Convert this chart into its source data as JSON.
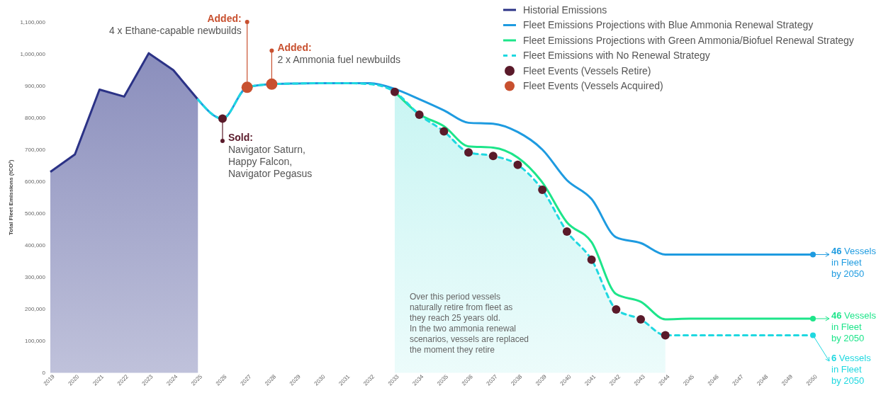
{
  "chart_data": {
    "type": "line",
    "ylabel": "Total Fleet Emissions (tCO²)",
    "xlim": [
      2019,
      2050
    ],
    "xticks": [
      2019,
      2020,
      2021,
      2022,
      2023,
      2024,
      2025,
      2026,
      2027,
      2028,
      2029,
      2030,
      2031,
      2032,
      2033,
      2034,
      2035,
      2036,
      2037,
      2038,
      2039,
      2040,
      2041,
      2042,
      2043,
      2044,
      2045,
      2046,
      2047,
      2048,
      2049,
      2050
    ],
    "ylim": [
      0,
      1100000
    ],
    "yticks": [
      0,
      {
        "value": 100000,
        "label": "100,000"
      },
      {
        "value": 200000,
        "label": "200,000"
      },
      {
        "value": 300000,
        "label": "300,000"
      },
      {
        "value": 400000,
        "label": "400,000"
      },
      {
        "value": 500000,
        "label": "500,000"
      },
      {
        "value": 600000,
        "label": "600,000"
      },
      {
        "value": 700000,
        "label": "700,000"
      },
      {
        "value": 800000,
        "label": "800,000"
      },
      {
        "value": 900000,
        "label": "900,000"
      },
      {
        "value": 1000000,
        "label": "1,000,000"
      },
      {
        "value": 1100000,
        "label": "1,100,000"
      }
    ],
    "grid": false,
    "legend": "top right",
    "series": [
      {
        "type": "area",
        "color": "#c9f5f3",
        "x": [
          2033,
          2034,
          2035,
          2036,
          2037,
          2038,
          2039,
          2040,
          2041,
          2042,
          2043,
          2044
        ],
        "values": [
          881000,
          809000,
          757000,
          691000,
          680000,
          652000,
          574000,
          443000,
          355000,
          199000,
          168000,
          118000
        ]
      },
      {
        "type": "area",
        "name": "Historial Emissions",
        "color": "#2b3286",
        "x": [
          2019,
          2020,
          2021,
          2022,
          2023,
          2024,
          2025
        ],
        "values": [
          630000,
          685000,
          888000,
          866000,
          1002000,
          949000,
          857000
        ]
      },
      {
        "name": "Fleet Emissions Projections with Blue Ammonia Renewal Strategy",
        "color": "#1e9be0",
        "x": [
          2025,
          2026,
          2027,
          2028,
          2029,
          2030,
          2031,
          2032,
          2033,
          2034,
          2035,
          2036,
          2037,
          2038,
          2039,
          2040,
          2041,
          2042,
          2043,
          2044,
          2045,
          2046,
          2047,
          2048,
          2049,
          2050
        ],
        "values": [
          857000,
          797000,
          895000,
          905000,
          907000,
          908000,
          908000,
          908000,
          890000,
          858000,
          823000,
          784000,
          781000,
          755000,
          700000,
          604000,
          545000,
          425000,
          407000,
          371000,
          371000,
          371000,
          371000,
          371000,
          371000,
          371000
        ]
      },
      {
        "name": "Fleet Emissions Projections with Green Ammonia/Biofuel Renewal Strategy",
        "color": "#1de58a",
        "x": [
          2033,
          2034,
          2035,
          2036,
          2037,
          2038,
          2039,
          2040,
          2041,
          2042,
          2043,
          2044,
          2045,
          2046,
          2047,
          2048,
          2049,
          2050
        ],
        "values": [
          881000,
          811000,
          773000,
          710000,
          706000,
          675000,
          597000,
          472000,
          410000,
          247000,
          223000,
          168000,
          170000,
          170000,
          170000,
          170000,
          170000,
          170000
        ]
      },
      {
        "name": "Fleet Emissions with No Renewal Strategy",
        "color": "#1fd8e0",
        "line_style": "dashed",
        "x": [
          2025,
          2026,
          2027,
          2028,
          2029,
          2030,
          2031,
          2032,
          2033,
          2034,
          2035,
          2036,
          2037,
          2038,
          2039,
          2040,
          2041,
          2042,
          2043,
          2044,
          2045,
          2046,
          2047,
          2048,
          2049,
          2050
        ],
        "values": [
          857000,
          797000,
          895000,
          905000,
          907000,
          908000,
          908000,
          905000,
          881000,
          809000,
          757000,
          691000,
          680000,
          652000,
          574000,
          443000,
          355000,
          199000,
          168000,
          118000,
          118000,
          118000,
          118000,
          118000,
          118000,
          118000
        ]
      },
      {
        "type": "scatter",
        "name": "Fleet Events (Vessels Retire)",
        "color": "#5a1a2a",
        "marker": "circle",
        "x": [
          2026,
          2033,
          2034,
          2035,
          2036,
          2037,
          2038,
          2039,
          2040,
          2041,
          2042,
          2043,
          2044
        ],
        "values": [
          797000,
          881000,
          809000,
          757000,
          691000,
          680000,
          652000,
          574000,
          443000,
          355000,
          199000,
          168000,
          118000
        ]
      },
      {
        "type": "scatter",
        "name": "Fleet Events (Vessels Acquired)",
        "color": "#c8502f",
        "marker": "circle",
        "x": [
          2027,
          2028
        ],
        "values": [
          895000,
          905000
        ]
      }
    ],
    "annotations": [
      {
        "text": "Added:\n4 x Ethane-capable newbuilds",
        "x": 2027,
        "y": 1100000
      },
      {
        "text": "Added:\n2 x Ammonia fuel newbuilds",
        "x": 2028,
        "y": 1010000
      },
      {
        "text": "Sold:\nNavigator Saturn,\nHappy Falcon,\nNavigator Pegasus",
        "x": 2026,
        "y": 727000
      },
      {
        "text": "46 Vessels\nin Fleet\nby 2050",
        "x": 2050,
        "y": 371000
      },
      {
        "text": "46 Vessels\nin Fleet\nby 2050",
        "x": 2050,
        "y": 170000
      },
      {
        "text": "6 Vessels\nin Fleet\nby 2050",
        "x": 2050,
        "y": 118000
      },
      "Over this period vessels\nnaturally retire from fleet as\nthey reach 25 years old.\nIn the two ammonia renewal\nscenarios, vessels are replaced\nthe moment they retire"
    ]
  }
}
